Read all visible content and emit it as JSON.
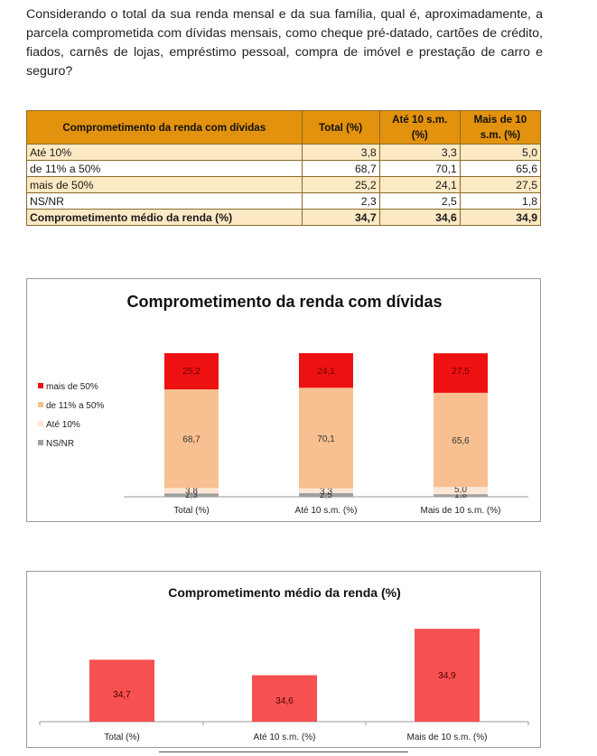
{
  "question": "Considerando o total da sua renda mensal e da sua família, qual é, aproximadamente, a parcela comprometida com dívidas mensais, como cheque pré-datado, cartões de crédito, fiados, carnês de lojas, empréstimo pessoal, compra de imóvel e prestação de carro e seguro?",
  "table": {
    "headers": [
      "Comprometimento da renda com dívidas",
      "Total (%)",
      "Até 10 s.m. (%)",
      "Mais de 10 s.m. (%)"
    ],
    "rows": [
      {
        "label": "Até 10%",
        "values": [
          "3,8",
          "3,3",
          "5,0"
        ]
      },
      {
        "label": "de 11% a 50%",
        "values": [
          "68,7",
          "70,1",
          "65,6"
        ]
      },
      {
        "label": "mais de 50%",
        "values": [
          "25,2",
          "24,1",
          "27,5"
        ]
      },
      {
        "label": "NS/NR",
        "values": [
          "2,3",
          "2,5",
          "1,8"
        ]
      },
      {
        "label": "Comprometimento médio da renda (%)",
        "values": [
          "34,7",
          "34,6",
          "34,9"
        ]
      }
    ]
  },
  "colors": {
    "header_bg": "#e3920d",
    "row_shade": "#fde9c4",
    "mais50": "#ee1111",
    "de11a50": "#f8c090",
    "ate10": "#fde6d6",
    "nsnr": "#a0a0a0",
    "avg_bar": "#f75050"
  },
  "chart_data": [
    {
      "type": "bar",
      "stacked": true,
      "title": "Comprometimento da renda com dívidas",
      "categories": [
        "Total (%)",
        "Até 10 s.m. (%)",
        "Mais de 10 s.m. (%)"
      ],
      "series": [
        {
          "name": "NS/NR",
          "values": [
            2.3,
            2.5,
            1.8
          ],
          "labels": [
            "2,3",
            "2,5",
            "1,8"
          ],
          "color": "#a0a0a0"
        },
        {
          "name": "Até 10%",
          "values": [
            3.8,
            3.3,
            5.0
          ],
          "labels": [
            "3,8",
            "3,3",
            "5,0"
          ],
          "color": "#fde6d6"
        },
        {
          "name": "de 11% a 50%",
          "values": [
            68.7,
            70.1,
            65.6
          ],
          "labels": [
            "68,7",
            "70,1",
            "65,6"
          ],
          "color": "#f8c090"
        },
        {
          "name": "mais de 50%",
          "values": [
            25.2,
            24.1,
            27.5
          ],
          "labels": [
            "25,2",
            "24,1",
            "27,5"
          ],
          "color": "#ee1111"
        }
      ],
      "legend_order": [
        "mais de 50%",
        "de 11% a 50%",
        "Até 10%",
        "NS/NR"
      ],
      "legend": "left",
      "ylim": [
        0,
        100
      ],
      "grid": false
    },
    {
      "type": "bar",
      "title": "Comprometimento médio da renda (%)",
      "categories": [
        "Total (%)",
        "Até 10 s.m. (%)",
        "Mais de 10 s.m. (%)"
      ],
      "values": [
        34.7,
        34.6,
        34.9
      ],
      "labels": [
        "34,7",
        "34,6",
        "34,9"
      ],
      "ylim": [
        34.3,
        35.0
      ],
      "grid": false
    }
  ]
}
